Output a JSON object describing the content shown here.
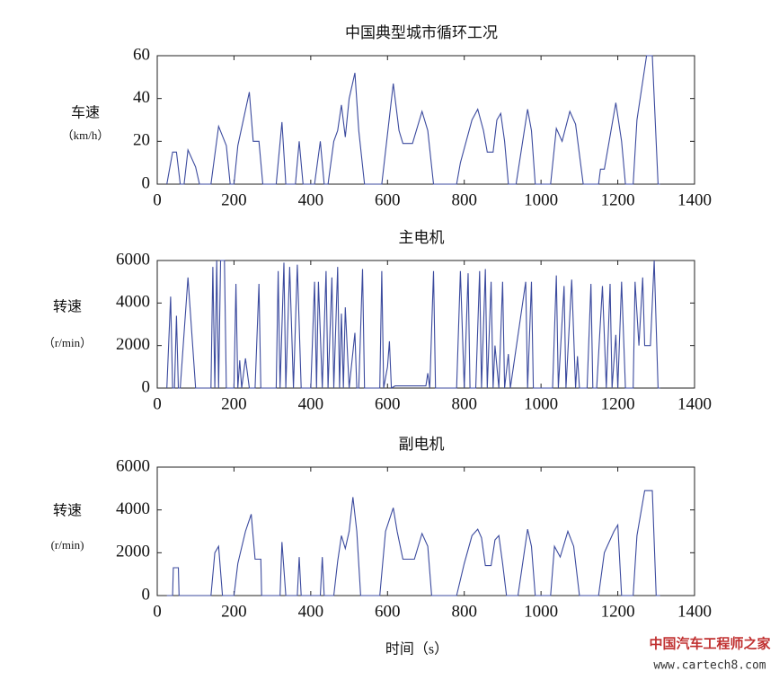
{
  "chart_data": [
    {
      "type": "line",
      "title": "中国典型城市循环工况",
      "ylabel": "车速",
      "ylabel_unit": "（km/h）",
      "color": "#3b4a9e",
      "xlim": [
        0,
        1400
      ],
      "xticks": [
        0,
        200,
        400,
        600,
        800,
        1000,
        1200,
        1400
      ],
      "ylim": [
        0,
        60
      ],
      "yticks": [
        0,
        20,
        40,
        60
      ],
      "x": [
        25,
        40,
        50,
        60,
        70,
        80,
        100,
        110,
        140,
        160,
        180,
        190,
        200,
        210,
        240,
        250,
        265,
        275,
        310,
        325,
        335,
        360,
        370,
        380,
        410,
        425,
        435,
        445,
        460,
        470,
        480,
        490,
        500,
        515,
        525,
        540,
        585,
        615,
        630,
        640,
        665,
        690,
        705,
        720,
        780,
        790,
        820,
        835,
        850,
        860,
        875,
        885,
        895,
        905,
        915,
        935,
        965,
        975,
        985,
        1025,
        1040,
        1055,
        1075,
        1090,
        1110,
        1150,
        1155,
        1165,
        1195,
        1210,
        1220,
        1240,
        1250,
        1275,
        1290,
        1305,
        1310
      ],
      "values": [
        0,
        15,
        15,
        0,
        0,
        16,
        8,
        0,
        0,
        27,
        18,
        0,
        0,
        18,
        43,
        20,
        20,
        0,
        0,
        29,
        0,
        0,
        20,
        0,
        0,
        20,
        0,
        0,
        20,
        25,
        37,
        22,
        40,
        52,
        25,
        0,
        0,
        47,
        25,
        19,
        19,
        34,
        25,
        0,
        0,
        10,
        30,
        35,
        25,
        15,
        15,
        30,
        33,
        20,
        0,
        0,
        35,
        25,
        0,
        0,
        26,
        20,
        34,
        28,
        0,
        0,
        7,
        7,
        38,
        20,
        0,
        0,
        30,
        60,
        60,
        0,
        0
      ]
    },
    {
      "type": "line",
      "title": "主电机",
      "ylabel": "转速",
      "ylabel_unit": "（r/min）",
      "color": "#3b4a9e",
      "xlim": [
        0,
        1400
      ],
      "xticks": [
        0,
        200,
        400,
        600,
        800,
        1000,
        1200,
        1400
      ],
      "ylim": [
        0,
        6000
      ],
      "yticks": [
        0,
        2000,
        4000,
        6000
      ],
      "x": [
        25,
        35,
        40,
        45,
        50,
        55,
        60,
        80,
        100,
        140,
        145,
        150,
        155,
        160,
        165,
        175,
        180,
        200,
        205,
        210,
        215,
        220,
        230,
        240,
        255,
        265,
        270,
        310,
        315,
        320,
        330,
        335,
        345,
        355,
        365,
        375,
        400,
        410,
        415,
        420,
        430,
        440,
        445,
        455,
        460,
        470,
        475,
        480,
        485,
        490,
        500,
        515,
        520,
        525,
        535,
        540,
        580,
        585,
        590,
        600,
        605,
        610,
        620,
        700,
        705,
        710,
        720,
        725,
        780,
        790,
        800,
        810,
        815,
        830,
        840,
        845,
        855,
        860,
        870,
        875,
        880,
        890,
        900,
        905,
        915,
        920,
        960,
        965,
        975,
        980,
        1030,
        1040,
        1045,
        1060,
        1065,
        1080,
        1090,
        1095,
        1100,
        1120,
        1130,
        1135,
        1145,
        1160,
        1170,
        1180,
        1185,
        1195,
        1200,
        1210,
        1220,
        1240,
        1245,
        1255,
        1265,
        1270,
        1285,
        1295,
        1305,
        1310
      ],
      "values": [
        0,
        4300,
        0,
        0,
        3400,
        0,
        0,
        5200,
        0,
        0,
        5700,
        0,
        6000,
        0,
        6000,
        6000,
        0,
        0,
        4900,
        0,
        1300,
        0,
        1400,
        0,
        0,
        4900,
        0,
        0,
        5500,
        0,
        5900,
        0,
        5700,
        0,
        5800,
        0,
        0,
        5000,
        0,
        5000,
        0,
        5500,
        0,
        5200,
        0,
        5700,
        0,
        3500,
        0,
        3800,
        0,
        2600,
        0,
        0,
        5600,
        0,
        0,
        5500,
        0,
        1000,
        2200,
        0,
        100,
        100,
        700,
        0,
        5500,
        0,
        0,
        5500,
        0,
        5400,
        0,
        0,
        5500,
        0,
        5600,
        0,
        5000,
        0,
        2000,
        0,
        5000,
        0,
        1600,
        0,
        5000,
        0,
        5000,
        0,
        0,
        5300,
        0,
        4800,
        0,
        5100,
        0,
        1500,
        0,
        0,
        4900,
        0,
        0,
        4800,
        0,
        4900,
        0,
        2500,
        0,
        5000,
        0,
        0,
        5000,
        2000,
        5200,
        2000,
        2000,
        6000,
        0,
        0
      ]
    },
    {
      "type": "line",
      "title": "副电机",
      "ylabel": "转速",
      "ylabel_unit": "(r/min)",
      "xlabel": "时间（s）",
      "color": "#3b4a9e",
      "xlim": [
        0,
        1400
      ],
      "xticks": [
        0,
        200,
        400,
        600,
        800,
        1000,
        1200,
        1400
      ],
      "ylim": [
        0,
        6000
      ],
      "yticks": [
        0,
        2000,
        4000,
        6000
      ],
      "x": [
        25,
        40,
        42,
        55,
        57,
        140,
        150,
        160,
        170,
        200,
        210,
        230,
        245,
        255,
        270,
        272,
        320,
        325,
        335,
        365,
        370,
        375,
        425,
        430,
        435,
        460,
        470,
        480,
        490,
        500,
        510,
        520,
        530,
        580,
        595,
        615,
        625,
        640,
        670,
        690,
        705,
        715,
        780,
        800,
        820,
        835,
        845,
        855,
        870,
        880,
        890,
        900,
        910,
        940,
        965,
        975,
        985,
        1025,
        1035,
        1050,
        1070,
        1085,
        1100,
        1150,
        1165,
        1190,
        1200,
        1210,
        1240,
        1250,
        1270,
        1290,
        1300,
        1310
      ],
      "values": [
        0,
        0,
        1300,
        1300,
        0,
        0,
        2000,
        2300,
        0,
        0,
        1500,
        3000,
        3800,
        1700,
        1700,
        0,
        0,
        2500,
        0,
        0,
        1800,
        0,
        0,
        1800,
        0,
        0,
        1600,
        2800,
        2200,
        3000,
        4600,
        3000,
        0,
        0,
        3000,
        4100,
        3000,
        1700,
        1700,
        2900,
        2300,
        0,
        0,
        1500,
        2800,
        3100,
        2700,
        1400,
        1400,
        2600,
        2800,
        1500,
        0,
        0,
        3100,
        2300,
        0,
        0,
        2300,
        1800,
        3000,
        2300,
        0,
        0,
        2000,
        3000,
        3300,
        0,
        0,
        2800,
        4900,
        4900,
        0,
        0
      ]
    }
  ],
  "watermark": {
    "name": "中国汽车工程师之家",
    "url": "www.cartech8.com"
  }
}
